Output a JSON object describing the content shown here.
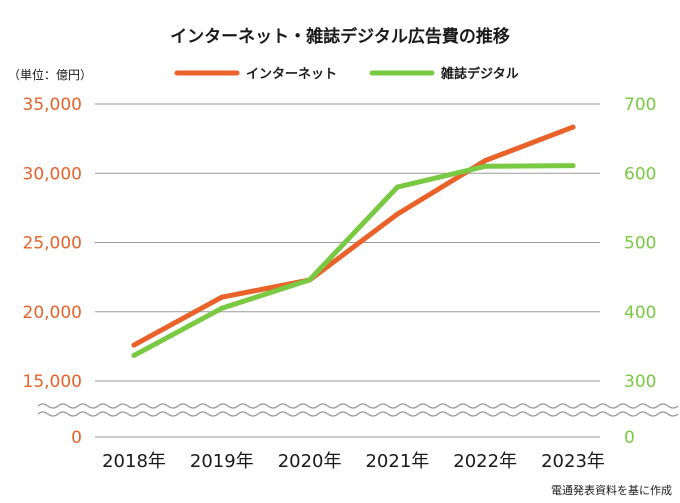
{
  "chart_data": {
    "type": "line",
    "title": "インターネット・雑誌デジタル広告費の推移",
    "unit_label": "（単位：億円）",
    "source": "電通発表資料を基に作成",
    "categories": [
      "2018年",
      "2019年",
      "2020年",
      "2021年",
      "2022年",
      "2023年"
    ],
    "y_left": {
      "ticks": [
        "35,000",
        "30,000",
        "25,000",
        "20,000",
        "15,000"
      ],
      "tick_values": [
        35000,
        30000,
        25000,
        20000,
        15000
      ],
      "zero_label": "0",
      "ylim": [
        15000,
        35000
      ],
      "color": "#e8622a",
      "broken_axis": true
    },
    "y_right": {
      "ticks": [
        "700",
        "600",
        "500",
        "400",
        "300"
      ],
      "tick_values": [
        700,
        600,
        500,
        400,
        300
      ],
      "zero_label": "0",
      "ylim": [
        300,
        700
      ],
      "color": "#7ac943",
      "broken_axis": true
    },
    "series": [
      {
        "name": "インターネット",
        "axis": "left",
        "color": "#e8622a",
        "values": [
          17589,
          21048,
          22290,
          27052,
          30912,
          33330
        ]
      },
      {
        "name": "雑誌デジタル",
        "axis": "right",
        "color": "#7ac943",
        "values": [
          337,
          405,
          446,
          580,
          610,
          611
        ]
      }
    ],
    "grid": true,
    "legend_position": "top-center"
  }
}
